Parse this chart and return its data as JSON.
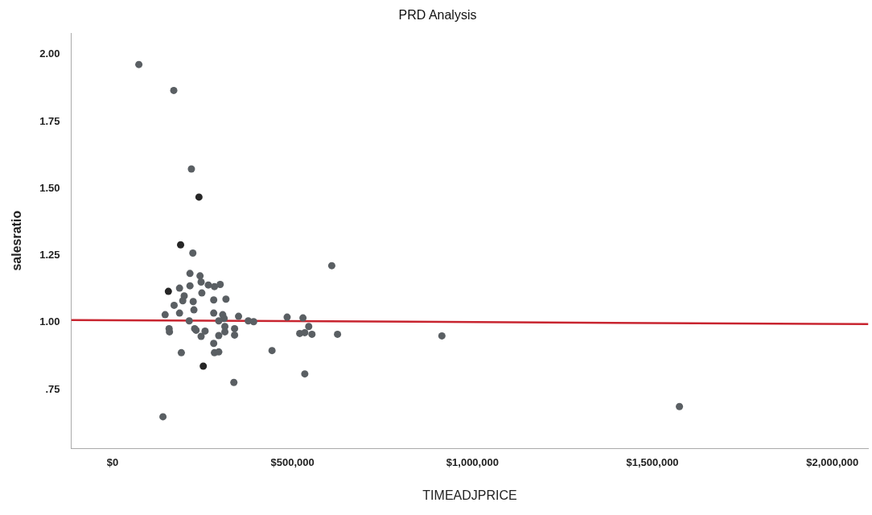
{
  "chart_data": {
    "type": "scatter",
    "title": "PRD Analysis",
    "xlabel": "TIMEADJPRICE",
    "ylabel": "salesratio",
    "xlim": [
      -115000,
      2100000
    ],
    "ylim": [
      0.53,
      2.08
    ],
    "xticks": [
      {
        "value": 0,
        "label": "$0"
      },
      {
        "value": 500000,
        "label": "$500,000"
      },
      {
        "value": 1000000,
        "label": "$1,000,000"
      },
      {
        "value": 1500000,
        "label": "$1,500,000"
      },
      {
        "value": 2000000,
        "label": "$2,000,000"
      }
    ],
    "yticks": [
      {
        "value": 0.75,
        "label": ".75"
      },
      {
        "value": 1,
        "label": "1.00"
      },
      {
        "value": 1.25,
        "label": "1.25"
      },
      {
        "value": 1.5,
        "label": "1.50"
      },
      {
        "value": 1.75,
        "label": "1.75"
      },
      {
        "value": 2,
        "label": "2.00"
      }
    ],
    "grid": false,
    "legend": false,
    "marker": "circle",
    "series": [
      {
        "color": "#5a5f63",
        "x": [
          73000,
          170000,
          219000,
          223000,
          140000,
          337000,
          191000,
          609000,
          215000,
          243000,
          246000,
          266000,
          283000,
          299000,
          186000,
          215000,
          199000,
          248000,
          281000,
          315000,
          171000,
          195000,
          224000,
          186000,
          226000,
          146000,
          213000,
          281000,
          306000,
          310000,
          295000,
          350000,
          377000,
          392000,
          485000,
          529000,
          545000,
          520000,
          534000,
          554000,
          625000,
          157000,
          158000,
          228000,
          232000,
          257000,
          246000,
          312000,
          312000,
          295000,
          339000,
          339000,
          281000,
          283000,
          295000,
          443000,
          534000,
          915000,
          1575000
        ],
        "values": [
          1.963,
          1.866,
          1.573,
          1.259,
          0.648,
          0.776,
          0.887,
          1.212,
          1.183,
          1.174,
          1.151,
          1.14,
          1.134,
          1.142,
          1.128,
          1.137,
          1.099,
          1.11,
          1.084,
          1.087,
          1.064,
          1.081,
          1.078,
          1.035,
          1.047,
          1.029,
          1.006,
          1.035,
          1.029,
          1.015,
          1.006,
          1.023,
          1.006,
          1.003,
          1.02,
          1.017,
          0.985,
          0.959,
          0.962,
          0.956,
          0.956,
          0.977,
          0.965,
          0.977,
          0.971,
          0.968,
          0.948,
          0.985,
          0.965,
          0.951,
          0.977,
          0.953,
          0.922,
          0.887,
          0.89,
          0.895,
          0.808,
          0.95,
          0.686
        ]
      },
      {
        "color": "#262626",
        "x": [
          240000,
          189000,
          155000,
          252000
        ],
        "values": [
          1.468,
          1.29,
          1.116,
          0.837
        ]
      },
      {
        "type": "line",
        "color": "#c8242f",
        "marker": "none",
        "line_style": "solid",
        "x": [
          -115000,
          2100000
        ],
        "values": [
          1.009,
          0.994
        ]
      }
    ]
  }
}
